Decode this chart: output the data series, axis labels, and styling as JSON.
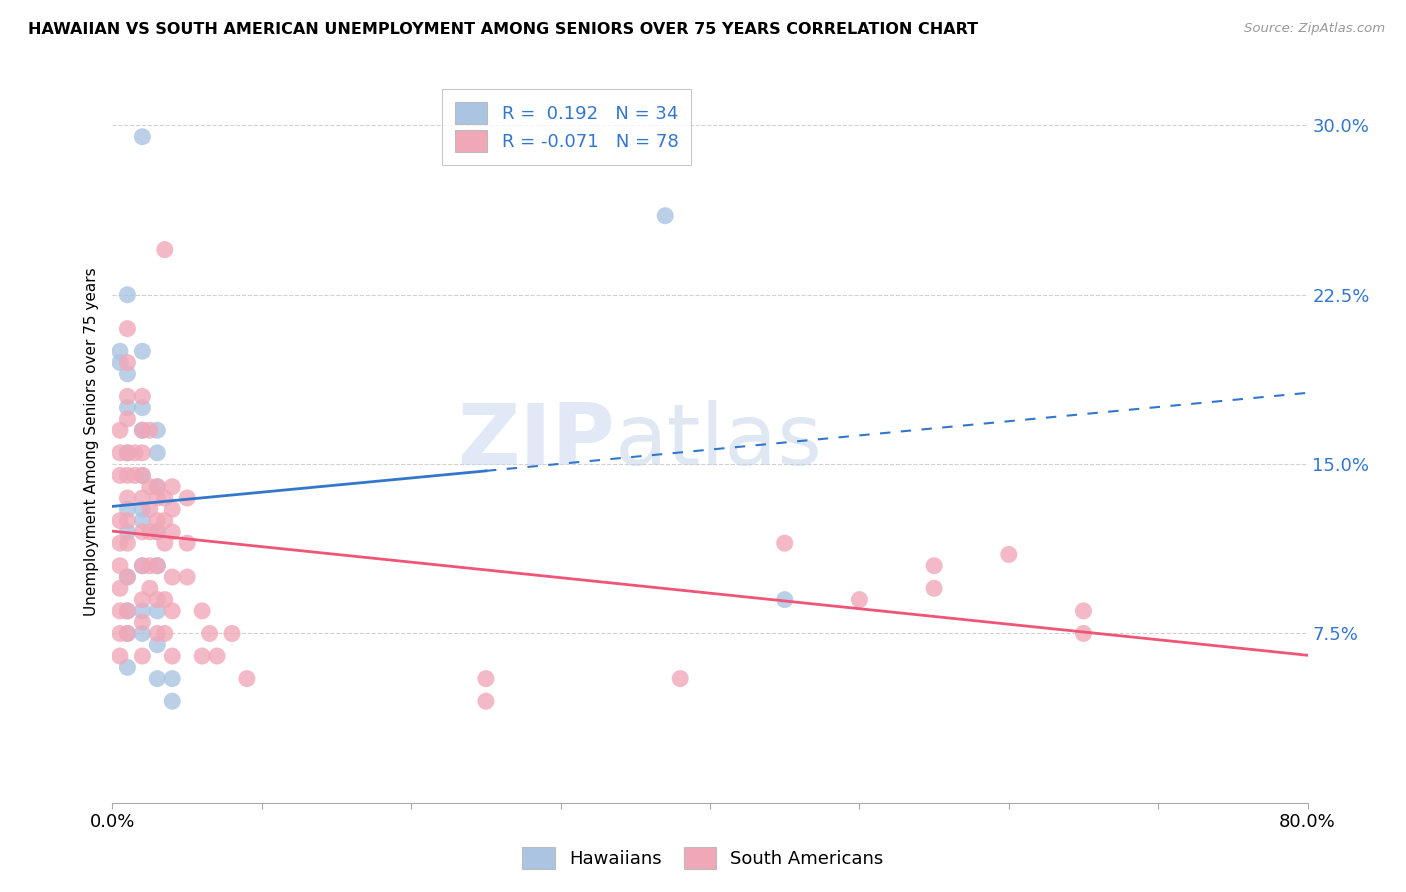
{
  "title": "HAWAIIAN VS SOUTH AMERICAN UNEMPLOYMENT AMONG SENIORS OVER 75 YEARS CORRELATION CHART",
  "source": "Source: ZipAtlas.com",
  "ylabel": "Unemployment Among Seniors over 75 years",
  "ytick_labels": [
    "7.5%",
    "15.0%",
    "22.5%",
    "30.0%"
  ],
  "ytick_values": [
    0.075,
    0.15,
    0.225,
    0.3
  ],
  "xlim": [
    0.0,
    0.8
  ],
  "ylim": [
    0.0,
    0.32
  ],
  "legend_R_hawaiian": " 0.192",
  "legend_N_hawaiian": "34",
  "legend_R_south_american": "-0.071",
  "legend_N_south_american": "78",
  "hawaiian_color": "#aac4e2",
  "south_american_color": "#f0a8b8",
  "trend_hawaiian_color": "#3377cc",
  "trend_south_american_color": "#ee5577",
  "watermark_text": "ZIPatlas",
  "watermark_color": "#d0dff0",
  "background_color": "#ffffff",
  "hawaiians_scatter": [
    [
      0.005,
      0.2
    ],
    [
      0.005,
      0.195
    ],
    [
      0.01,
      0.225
    ],
    [
      0.01,
      0.19
    ],
    [
      0.01,
      0.175
    ],
    [
      0.01,
      0.155
    ],
    [
      0.01,
      0.13
    ],
    [
      0.01,
      0.12
    ],
    [
      0.01,
      0.1
    ],
    [
      0.01,
      0.085
    ],
    [
      0.01,
      0.075
    ],
    [
      0.01,
      0.06
    ],
    [
      0.02,
      0.295
    ],
    [
      0.02,
      0.2
    ],
    [
      0.02,
      0.175
    ],
    [
      0.02,
      0.165
    ],
    [
      0.02,
      0.145
    ],
    [
      0.02,
      0.13
    ],
    [
      0.02,
      0.125
    ],
    [
      0.02,
      0.105
    ],
    [
      0.02,
      0.085
    ],
    [
      0.02,
      0.075
    ],
    [
      0.03,
      0.165
    ],
    [
      0.03,
      0.155
    ],
    [
      0.03,
      0.14
    ],
    [
      0.03,
      0.12
    ],
    [
      0.03,
      0.105
    ],
    [
      0.03,
      0.085
    ],
    [
      0.03,
      0.07
    ],
    [
      0.03,
      0.055
    ],
    [
      0.04,
      0.055
    ],
    [
      0.04,
      0.045
    ],
    [
      0.37,
      0.26
    ],
    [
      0.45,
      0.09
    ]
  ],
  "south_americans_scatter": [
    [
      0.005,
      0.165
    ],
    [
      0.005,
      0.155
    ],
    [
      0.005,
      0.145
    ],
    [
      0.005,
      0.125
    ],
    [
      0.005,
      0.115
    ],
    [
      0.005,
      0.105
    ],
    [
      0.005,
      0.095
    ],
    [
      0.005,
      0.085
    ],
    [
      0.005,
      0.075
    ],
    [
      0.005,
      0.065
    ],
    [
      0.01,
      0.21
    ],
    [
      0.01,
      0.195
    ],
    [
      0.01,
      0.18
    ],
    [
      0.01,
      0.17
    ],
    [
      0.01,
      0.155
    ],
    [
      0.01,
      0.145
    ],
    [
      0.01,
      0.135
    ],
    [
      0.01,
      0.125
    ],
    [
      0.01,
      0.115
    ],
    [
      0.01,
      0.1
    ],
    [
      0.01,
      0.085
    ],
    [
      0.01,
      0.075
    ],
    [
      0.015,
      0.155
    ],
    [
      0.015,
      0.145
    ],
    [
      0.02,
      0.18
    ],
    [
      0.02,
      0.165
    ],
    [
      0.02,
      0.155
    ],
    [
      0.02,
      0.145
    ],
    [
      0.02,
      0.135
    ],
    [
      0.02,
      0.12
    ],
    [
      0.02,
      0.105
    ],
    [
      0.02,
      0.09
    ],
    [
      0.02,
      0.08
    ],
    [
      0.02,
      0.065
    ],
    [
      0.025,
      0.165
    ],
    [
      0.025,
      0.14
    ],
    [
      0.025,
      0.13
    ],
    [
      0.025,
      0.12
    ],
    [
      0.025,
      0.105
    ],
    [
      0.025,
      0.095
    ],
    [
      0.03,
      0.14
    ],
    [
      0.03,
      0.135
    ],
    [
      0.03,
      0.125
    ],
    [
      0.03,
      0.12
    ],
    [
      0.03,
      0.105
    ],
    [
      0.03,
      0.09
    ],
    [
      0.03,
      0.075
    ],
    [
      0.035,
      0.245
    ],
    [
      0.035,
      0.135
    ],
    [
      0.035,
      0.125
    ],
    [
      0.035,
      0.115
    ],
    [
      0.035,
      0.09
    ],
    [
      0.035,
      0.075
    ],
    [
      0.04,
      0.14
    ],
    [
      0.04,
      0.13
    ],
    [
      0.04,
      0.12
    ],
    [
      0.04,
      0.1
    ],
    [
      0.04,
      0.085
    ],
    [
      0.04,
      0.065
    ],
    [
      0.05,
      0.135
    ],
    [
      0.05,
      0.115
    ],
    [
      0.05,
      0.1
    ],
    [
      0.06,
      0.085
    ],
    [
      0.06,
      0.065
    ],
    [
      0.065,
      0.075
    ],
    [
      0.07,
      0.065
    ],
    [
      0.08,
      0.075
    ],
    [
      0.09,
      0.055
    ],
    [
      0.25,
      0.055
    ],
    [
      0.25,
      0.045
    ],
    [
      0.38,
      0.055
    ],
    [
      0.45,
      0.115
    ],
    [
      0.5,
      0.09
    ],
    [
      0.55,
      0.105
    ],
    [
      0.55,
      0.095
    ],
    [
      0.6,
      0.11
    ],
    [
      0.65,
      0.085
    ],
    [
      0.65,
      0.075
    ]
  ],
  "xtick_positions": [
    0.0,
    0.1,
    0.2,
    0.3,
    0.4,
    0.5,
    0.6,
    0.7,
    0.8
  ],
  "xtick_show_labels": [
    true,
    false,
    false,
    false,
    false,
    false,
    false,
    false,
    true
  ]
}
